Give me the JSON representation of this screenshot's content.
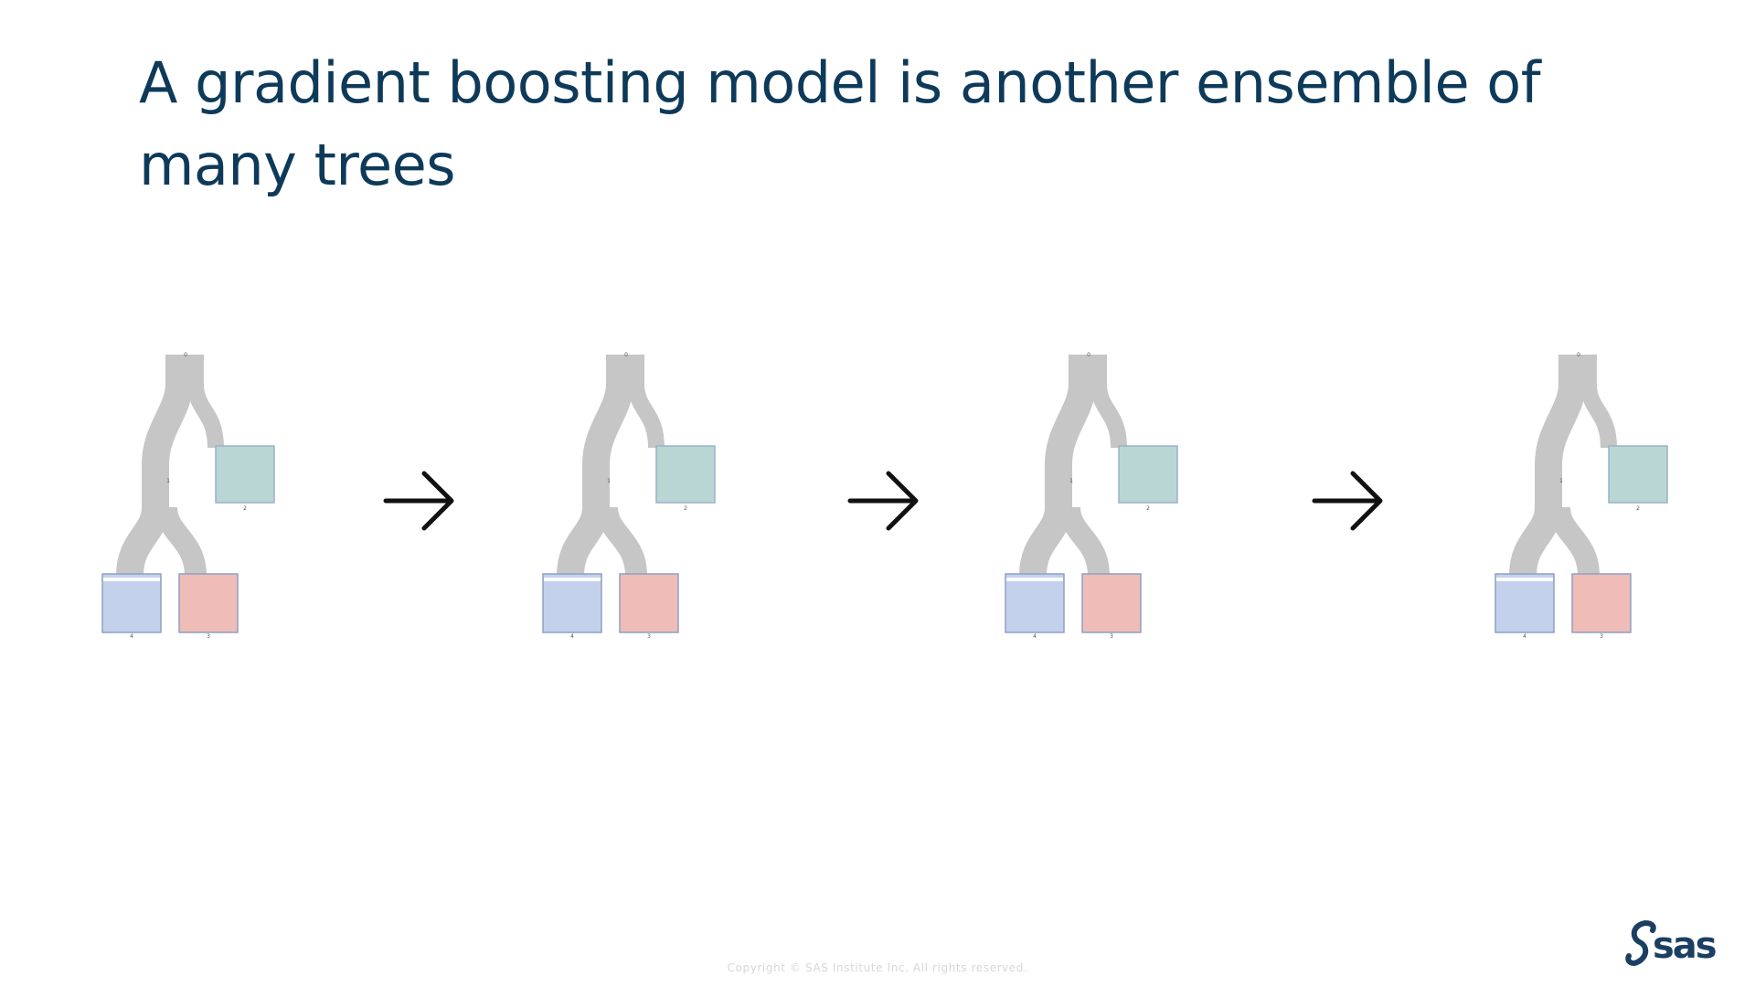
{
  "slide": {
    "title": "A gradient boosting model is another ensemble of many trees",
    "copyright": "Copyright © SAS Institute Inc. All rights reserved.",
    "logo_text": "sas"
  },
  "trees": [
    {
      "node_labels": [
        "0",
        "1",
        "2",
        "4",
        "3"
      ]
    },
    {
      "node_labels": [
        "0",
        "1",
        "2",
        "4",
        "3"
      ]
    },
    {
      "node_labels": [
        "0",
        "1",
        "2",
        "4",
        "3"
      ]
    },
    {
      "node_labels": [
        "0",
        "1",
        "2",
        "4",
        "3"
      ]
    }
  ],
  "colors": {
    "title": "#0e3a5a",
    "branch": "#c6c6c6",
    "leaf_teal": "#b9d6d4",
    "leaf_blue": "#c4d1ec",
    "leaf_red": "#efbcb8",
    "leaf_border": "#8fa0c4",
    "arrow": "#111111",
    "logo": "#1b3f63"
  },
  "icons": {
    "arrow": "right-arrow-icon",
    "logo": "sas-logo"
  }
}
